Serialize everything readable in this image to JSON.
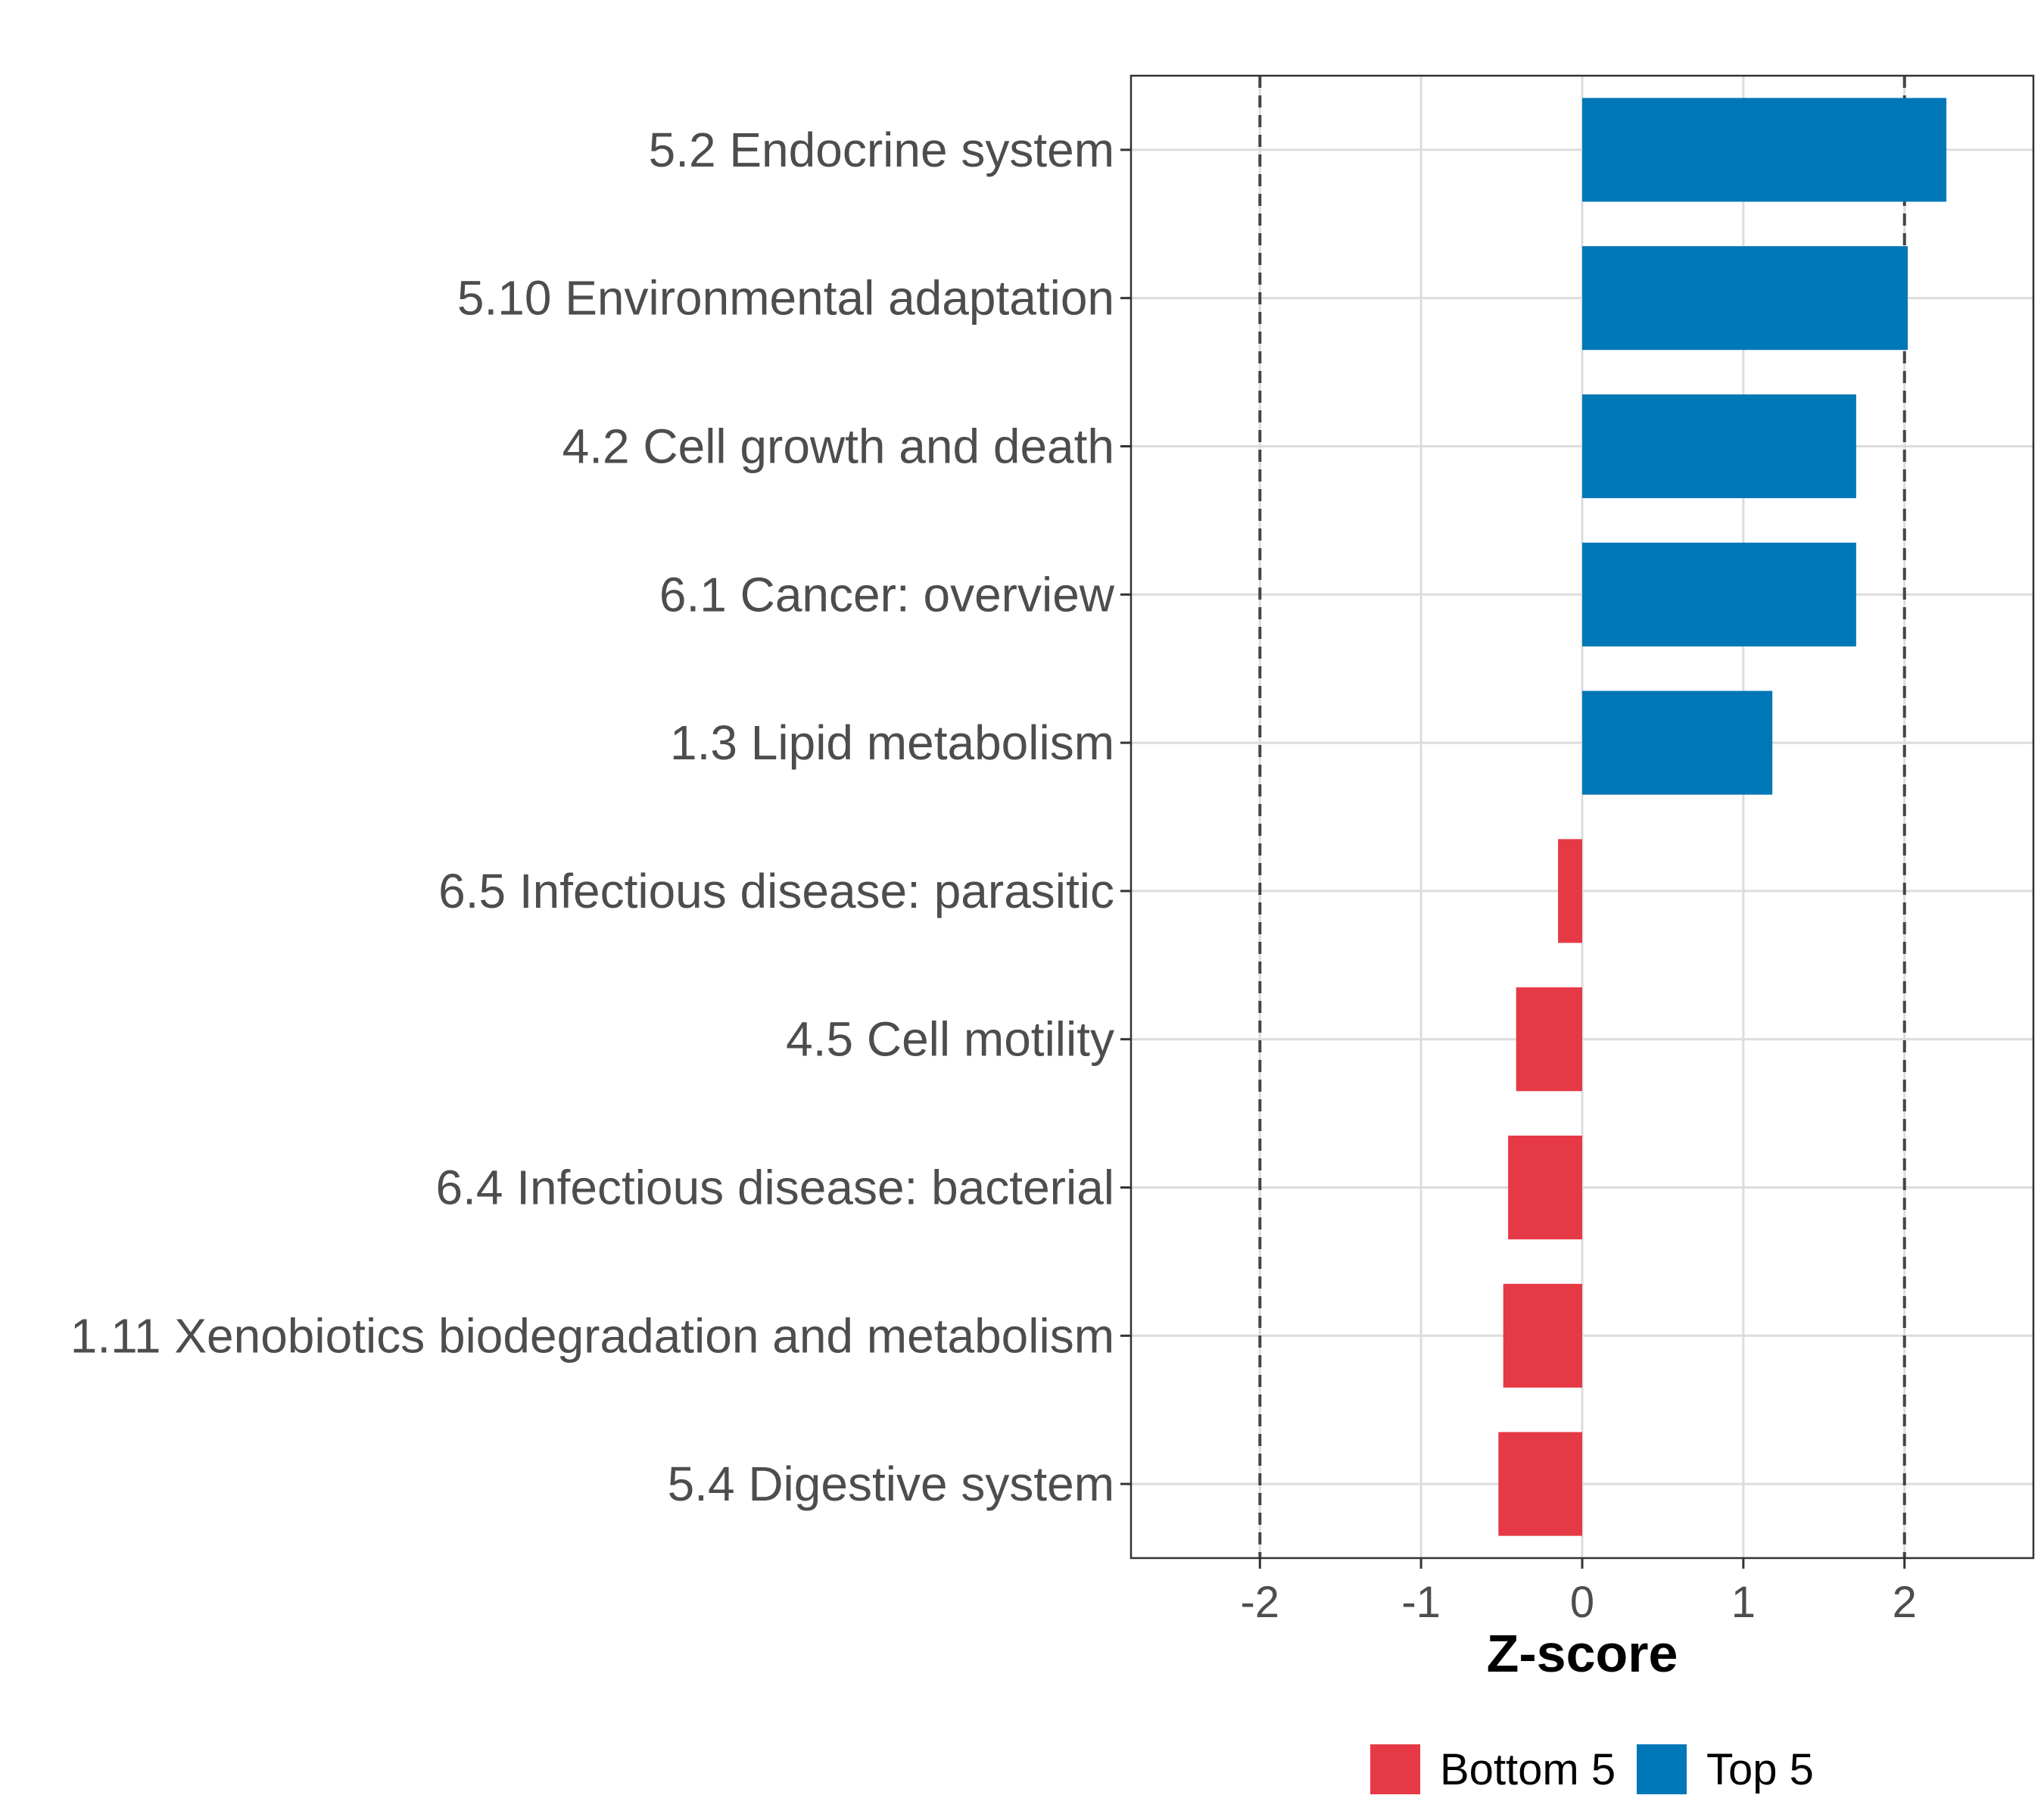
{
  "chart_data": {
    "type": "bar",
    "orientation": "horizontal",
    "categories": [
      "5.2 Endocrine system",
      "5.10 Environmental adaptation",
      "4.2 Cell growth and death",
      "6.1 Cancer: overview",
      "1.3 Lipid metabolism",
      "6.5 Infectious disease: parasitic",
      "4.5 Cell motility",
      "6.4 Infectious disease: bacterial",
      "1.11 Xenobiotics biodegradation and metabolism",
      "5.4 Digestive system"
    ],
    "values": [
      2.26,
      2.02,
      1.7,
      1.7,
      1.18,
      -0.15,
      -0.41,
      -0.46,
      -0.49,
      -0.52
    ],
    "groups": [
      "Top 5",
      "Top 5",
      "Top 5",
      "Top 5",
      "Top 5",
      "Bottom 5",
      "Bottom 5",
      "Bottom 5",
      "Bottom 5",
      "Bottom 5"
    ],
    "xlabel": "Z-score",
    "ylabel": "",
    "title": "",
    "xlim": [
      -2.8,
      2.8
    ],
    "xticks": [
      -2,
      -1,
      0,
      1,
      2
    ],
    "xtick_labels": [
      "-2",
      "-1",
      "0",
      "1",
      "2"
    ],
    "reference_lines": [
      -2,
      2
    ],
    "grid": true,
    "legend": {
      "position": "bottom",
      "entries": [
        {
          "label": "Bottom 5",
          "color": "#e63946"
        },
        {
          "label": "Top 5",
          "color": "#0077b6"
        }
      ]
    },
    "colors": {
      "Top 5": "#0077b6",
      "Bottom 5": "#e63946"
    }
  }
}
